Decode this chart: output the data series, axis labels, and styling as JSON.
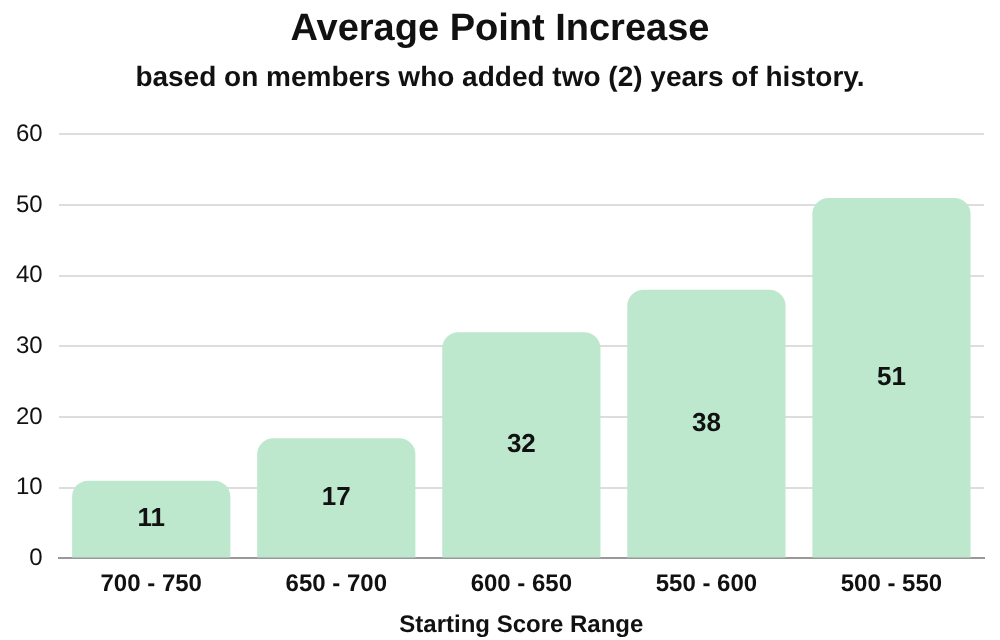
{
  "chart_data": {
    "type": "bar",
    "title": "Average Point Increase",
    "subtitle": "based on members who added two (2) years of history.",
    "xlabel": "Starting Score Range",
    "categories": [
      "700 - 750",
      "650 - 700",
      "600 - 650",
      "550 - 600",
      "500 - 550"
    ],
    "values": [
      11,
      17,
      32,
      38,
      51
    ],
    "color": "#bde8cd",
    "ylim": [
      0,
      60
    ],
    "yticks": [
      0,
      10,
      20,
      30,
      40,
      50,
      60
    ],
    "grid": "y",
    "data_labels": true
  }
}
